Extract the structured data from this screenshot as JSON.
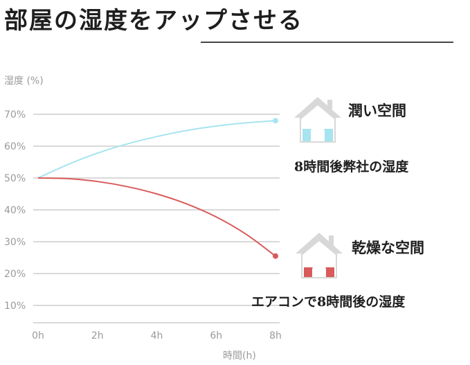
{
  "title": "部屋の湿度をアップさせる",
  "annotations": {
    "humid_label": "潤い空間",
    "humid_sub": "8時間後弊社の湿度",
    "dry_label": "乾燥な空間",
    "dry_sub": "エアコンで8時間後の湿度"
  },
  "icons": {
    "humid": "house-icon",
    "dry": "house-icon"
  },
  "colors": {
    "humid_line": "#a6e4f0",
    "dry_line": "#d95a5a",
    "grid": "#d9d9d9",
    "house": "#d8d8d8"
  },
  "chart_data": {
    "type": "line",
    "xlabel": "時間(h)",
    "ylabel": "湿度 (%)",
    "x_ticks": [
      "0h",
      "2h",
      "4h",
      "6h",
      "8h"
    ],
    "y_ticks": [
      "10%",
      "20%",
      "30%",
      "40%",
      "50%",
      "60%",
      "70%"
    ],
    "x": [
      0,
      1,
      2,
      3,
      4,
      5,
      6,
      7,
      8
    ],
    "xlim": [
      0,
      8
    ],
    "ylim": [
      10,
      70
    ],
    "grid": true,
    "series": [
      {
        "values": [
          50,
          54.2,
          57.8,
          60.7,
          63.0,
          64.9,
          66.3,
          67.3,
          68
        ]
      },
      {
        "values": [
          50,
          49.8,
          48.9,
          47.3,
          45.0,
          41.9,
          37.8,
          32.4,
          25.5
        ]
      }
    ]
  }
}
